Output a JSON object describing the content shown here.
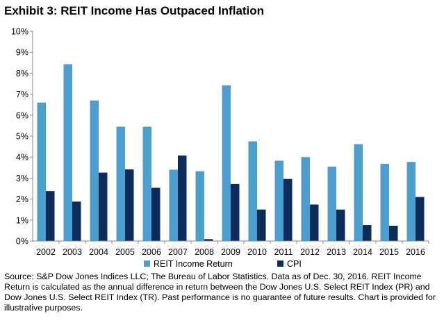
{
  "title": "Exhibit 3: REIT Income Has Outpaced Inflation",
  "source_note": "Source: S&P Dow Jones Indices LLC; The Bureau of Labor Statistics.  Data as of Dec. 30, 2016.  REIT Income Return is calculated as the annual difference in return between the Dow Jones U.S. Select REIT Index (PR) and Dow Jones U.S. Select REIT Index (TR).  Past performance is no guarantee of future results.  Chart is provided for illustrative purposes.",
  "colors": {
    "reit": "#4a9fd0",
    "cpi": "#0c2d5c",
    "axis": "#8a8a8a"
  },
  "chart_data": {
    "type": "bar",
    "title": "Exhibit 3: REIT Income Has Outpaced Inflation",
    "xlabel": "",
    "ylabel": "",
    "ylim": [
      0,
      10
    ],
    "y_ticks": [
      "0%",
      "1%",
      "2%",
      "3%",
      "4%",
      "5%",
      "6%",
      "7%",
      "8%",
      "9%",
      "10%"
    ],
    "grid": false,
    "legend_position": "bottom",
    "categories": [
      "2002",
      "2003",
      "2004",
      "2005",
      "2006",
      "2007",
      "2008",
      "2009",
      "2010",
      "2011",
      "2012",
      "2013",
      "2014",
      "2015",
      "2016"
    ],
    "series": [
      {
        "name": "REIT Income Return",
        "values": [
          6.6,
          8.43,
          6.7,
          5.45,
          5.45,
          3.4,
          3.33,
          7.42,
          4.75,
          3.83,
          4.0,
          3.55,
          4.62,
          3.68,
          3.77
        ]
      },
      {
        "name": "CPI",
        "values": [
          2.38,
          1.88,
          3.26,
          3.42,
          2.54,
          4.08,
          0.09,
          2.72,
          1.5,
          2.96,
          1.74,
          1.5,
          0.76,
          0.73,
          2.1
        ]
      }
    ]
  }
}
